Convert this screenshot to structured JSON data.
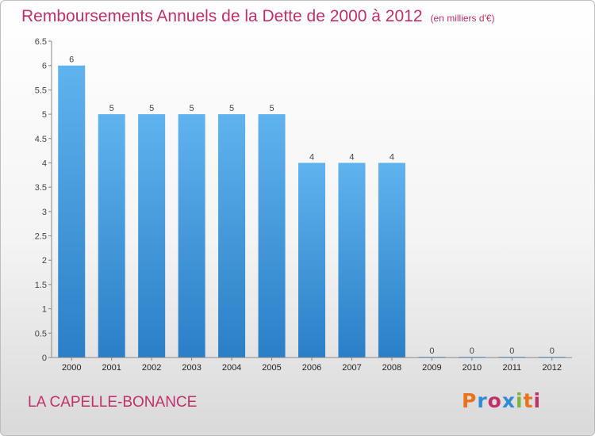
{
  "header": {
    "title": "Remboursements Annuels de la Dette de 2000 à 2012",
    "subtitle": "(en milliers d'€)"
  },
  "footer": {
    "commune": "LA CAPELLE-BONANCE",
    "brand": "Proxiti",
    "brand_colors": [
      "#e8731a",
      "#2e8bd6",
      "#c0306a",
      "#2e8bd6",
      "#7cb342",
      "#e8731a",
      "#c0306a"
    ]
  },
  "colors": {
    "bar_top": "#5fb3ee",
    "bar_bottom": "#2a7fc7",
    "axis": "#888888"
  },
  "chart_data": {
    "type": "bar",
    "categories": [
      "2000",
      "2001",
      "2002",
      "2003",
      "2004",
      "2005",
      "2006",
      "2007",
      "2008",
      "2009",
      "2010",
      "2011",
      "2012"
    ],
    "values": [
      6,
      5,
      5,
      5,
      5,
      5,
      4,
      4,
      4,
      0,
      0,
      0,
      0
    ],
    "data_labels": [
      "6",
      "5",
      "5",
      "5",
      "5",
      "5",
      "4",
      "4",
      "4",
      "0",
      "0",
      "0",
      "0"
    ],
    "y_ticks": [
      "0",
      "0.5",
      "1",
      "1.5",
      "2",
      "2.5",
      "3",
      "3.5",
      "4",
      "4.5",
      "5",
      "5.5",
      "6",
      "6.5"
    ],
    "ylim": [
      0,
      6.5
    ],
    "grid": false,
    "legend": "none"
  }
}
